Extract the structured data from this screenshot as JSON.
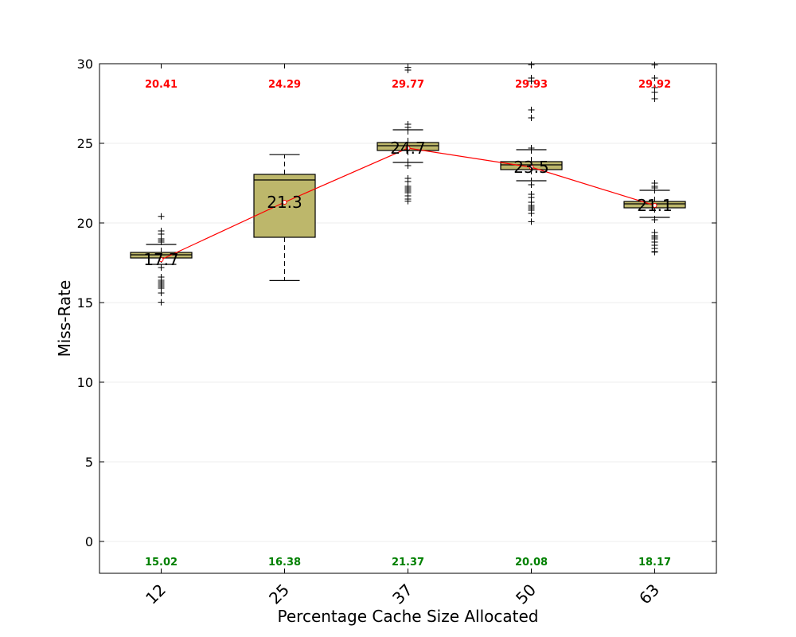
{
  "chart_data": {
    "type": "box",
    "xlabel": "Percentage Cache Size Allocated",
    "ylabel": "Miss-Rate",
    "ylim": [
      -2,
      30
    ],
    "yticks": [
      0,
      5,
      10,
      15,
      20,
      25,
      30
    ],
    "grid": "horizontal",
    "colors": {
      "box_fill": "#bdb76b",
      "mean_line": "#ff0000",
      "max_label": "#ff0000",
      "min_label": "#008000"
    },
    "categories": [
      "12",
      "25",
      "37",
      "50",
      "63"
    ],
    "series": [
      {
        "category": "12",
        "mean": 17.7,
        "mean_label": "17.7",
        "q1": 17.8,
        "median": 18.0,
        "q3": 18.15,
        "whisker_low": 17.4,
        "whisker_high": 18.65,
        "max": 20.41,
        "max_label": "20.41",
        "min": 15.02,
        "min_label": "15.02",
        "outliers": [
          20.41,
          19.5,
          19.3,
          19.0,
          18.9,
          18.8,
          17.2,
          16.6,
          16.4,
          16.3,
          16.2,
          16.1,
          16.0,
          15.9,
          15.6,
          15.02
        ]
      },
      {
        "category": "25",
        "mean": 21.3,
        "mean_label": "21.3",
        "q1": 19.1,
        "median": 22.7,
        "q3": 23.05,
        "whisker_low": 16.38,
        "whisker_high": 24.29,
        "max": 24.29,
        "max_label": "24.29",
        "min": 16.38,
        "min_label": "16.38",
        "outliers": []
      },
      {
        "category": "37",
        "mean": 24.7,
        "mean_label": "24.7",
        "q1": 24.55,
        "median": 24.85,
        "q3": 25.05,
        "whisker_low": 23.8,
        "whisker_high": 25.85,
        "max": 29.77,
        "max_label": "29.77",
        "min": 21.37,
        "min_label": "21.37",
        "outliers": [
          29.77,
          29.6,
          26.2,
          26.0,
          23.6,
          22.8,
          22.6,
          22.3,
          22.2,
          22.1,
          22.0,
          21.9,
          21.7,
          21.5,
          21.37
        ]
      },
      {
        "category": "50",
        "mean": 23.5,
        "mean_label": "23.5",
        "q1": 23.35,
        "median": 23.65,
        "q3": 23.85,
        "whisker_low": 22.65,
        "whisker_high": 24.6,
        "max": 29.93,
        "max_label": "29.93",
        "min": 20.08,
        "min_label": "20.08",
        "outliers": [
          29.93,
          29.1,
          28.9,
          27.1,
          26.6,
          24.7,
          22.4,
          21.8,
          21.6,
          21.3,
          21.1,
          21.0,
          20.9,
          20.8,
          20.6,
          20.08
        ]
      },
      {
        "category": "63",
        "mean": 21.1,
        "mean_label": "21.1",
        "q1": 20.95,
        "median": 21.2,
        "q3": 21.35,
        "whisker_low": 20.35,
        "whisker_high": 22.05,
        "max": 29.92,
        "max_label": "29.92",
        "min": 18.17,
        "min_label": "18.17",
        "outliers": [
          29.92,
          29.1,
          28.5,
          28.2,
          27.8,
          22.5,
          22.3,
          22.2,
          20.2,
          19.4,
          19.2,
          19.1,
          19.0,
          18.8,
          18.6,
          18.4,
          18.2,
          18.17
        ]
      }
    ]
  }
}
